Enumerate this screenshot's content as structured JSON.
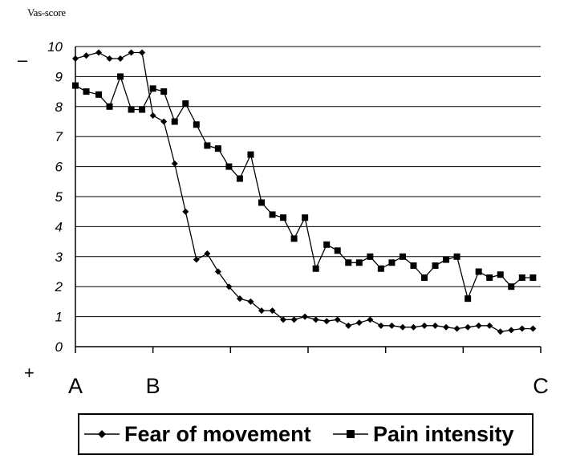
{
  "chart_data": {
    "type": "line",
    "ylabel": "Vas-score",
    "ylim": [
      0,
      10
    ],
    "yticks": [
      "0",
      "1",
      "2",
      "3",
      "4",
      "5",
      "6",
      "7",
      "8",
      "9",
      "10"
    ],
    "grid": true,
    "xlim": [
      0,
      30
    ],
    "phase_labels": [
      "A",
      "B",
      "C"
    ],
    "phase_positions": [
      0,
      5,
      30
    ],
    "scale_signs": {
      "top": "–",
      "bottom": "+"
    },
    "series": [
      {
        "name": "Fear of movement",
        "marker": "diamond",
        "x": [
          0,
          0.7,
          1.5,
          2.2,
          2.9,
          3.6,
          4.3,
          5.0,
          5.7,
          6.4,
          7.1,
          7.8,
          8.5,
          9.2,
          9.9,
          10.6,
          11.3,
          12.0,
          12.7,
          13.4,
          14.1,
          14.8,
          15.5,
          16.2,
          16.9,
          17.6,
          18.3,
          19.0,
          19.7,
          20.4,
          21.1,
          21.8,
          22.5,
          23.2,
          23.9,
          24.6,
          25.3,
          26.0,
          26.7,
          27.4,
          28.1,
          28.8,
          29.5
        ],
        "values": [
          9.6,
          9.7,
          9.8,
          9.6,
          9.6,
          9.8,
          9.8,
          7.7,
          7.5,
          6.1,
          4.5,
          2.9,
          3.1,
          2.5,
          2.0,
          1.6,
          1.5,
          1.2,
          1.2,
          0.9,
          0.9,
          1.0,
          0.9,
          0.85,
          0.9,
          0.7,
          0.8,
          0.9,
          0.7,
          0.7,
          0.65,
          0.65,
          0.7,
          0.7,
          0.65,
          0.6,
          0.65,
          0.7,
          0.7,
          0.5,
          0.55,
          0.6,
          0.6
        ]
      },
      {
        "name": "Pain intensity",
        "marker": "square",
        "x": [
          0,
          0.7,
          1.5,
          2.2,
          2.9,
          3.6,
          4.3,
          5.0,
          5.7,
          6.4,
          7.1,
          7.8,
          8.5,
          9.2,
          9.9,
          10.6,
          11.3,
          12.0,
          12.7,
          13.4,
          14.1,
          14.8,
          15.5,
          16.2,
          16.9,
          17.6,
          18.3,
          19.0,
          19.7,
          20.4,
          21.1,
          21.8,
          22.5,
          23.2,
          23.9,
          24.6,
          25.3,
          26.0,
          26.7,
          27.4,
          28.1,
          28.8,
          29.5
        ],
        "values": [
          8.7,
          8.5,
          8.4,
          8.0,
          9.0,
          7.9,
          7.9,
          8.6,
          8.5,
          7.5,
          8.1,
          7.4,
          6.7,
          6.6,
          6.0,
          5.6,
          6.4,
          4.8,
          4.4,
          4.3,
          3.6,
          4.3,
          2.6,
          3.4,
          3.2,
          2.8,
          2.8,
          3.0,
          2.6,
          2.8,
          3.0,
          2.7,
          2.3,
          2.7,
          2.9,
          3.0,
          1.6,
          2.5,
          2.3,
          2.4,
          2.0,
          2.3,
          2.3
        ]
      }
    ]
  }
}
